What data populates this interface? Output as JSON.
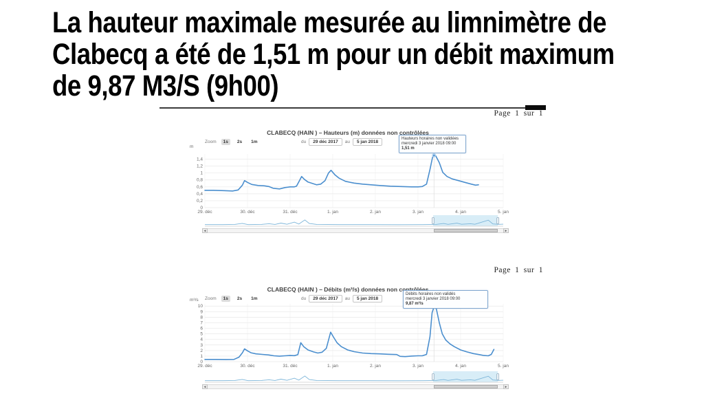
{
  "slide": {
    "title_lines": [
      "La hauteur maximale mesurée au limnimètre de",
      "Clabecq a été de 1,51 m pour un débit maximum",
      "de 9,87 M3/S (9h00)"
    ]
  },
  "icons": {
    "scroll_left": "◄",
    "scroll_right": "►"
  },
  "colors": {
    "line": "#4a8ece",
    "navigator_line": "#7ab4d8",
    "selection_fill": "#d8edf7",
    "marker": "#a8cdec",
    "grid": "#e8e8e8",
    "grid_v": "#f1f1f1",
    "axis_text": "#666666",
    "crosshair": "#dcdcdc",
    "annotation_border": "#7fa6cf"
  },
  "navigator": {
    "selection": [
      0.765,
      0.982
    ],
    "shape": [
      [
        0,
        0.1
      ],
      [
        0.06,
        0.1
      ],
      [
        0.1,
        0.12
      ],
      [
        0.125,
        0.24
      ],
      [
        0.145,
        0.1
      ],
      [
        0.19,
        0.12
      ],
      [
        0.215,
        0.2
      ],
      [
        0.235,
        0.12
      ],
      [
        0.255,
        0.27
      ],
      [
        0.275,
        0.14
      ],
      [
        0.3,
        0.38
      ],
      [
        0.315,
        0.16
      ],
      [
        0.335,
        0.62
      ],
      [
        0.35,
        0.22
      ],
      [
        0.375,
        0.12
      ],
      [
        0.45,
        0.1
      ],
      [
        0.55,
        0.1
      ],
      [
        0.65,
        0.09
      ],
      [
        0.73,
        0.1
      ],
      [
        0.775,
        0.12
      ],
      [
        0.8,
        0.22
      ],
      [
        0.815,
        0.13
      ],
      [
        0.845,
        0.26
      ],
      [
        0.86,
        0.14
      ],
      [
        0.89,
        0.2
      ],
      [
        0.905,
        0.14
      ],
      [
        0.95,
        0.6
      ],
      [
        0.965,
        0.18
      ],
      [
        0.985,
        0.13
      ],
      [
        1,
        0.15
      ]
    ]
  },
  "chart_data": [
    {
      "type": "line",
      "page_label": "Page 1 sur 1",
      "title": "CLABECQ (HAIN ) – Hauteurs (m) données non contrôlées",
      "range_selector": {
        "zoom_label": "Zoom",
        "buttons": [
          "1s",
          "2s",
          "1m"
        ],
        "selected": "1s",
        "from_label": "du",
        "from_value": "29 déc 2017",
        "to_label": "au",
        "to_value": "5 jan 2018"
      },
      "y_unit": "m",
      "ylim": [
        0,
        1.55
      ],
      "y_ticks": [
        1.4,
        1.2,
        1,
        0.8,
        0.6,
        0.4,
        0.2,
        0
      ],
      "y_tick_labels": [
        "1,4",
        "1,2",
        "1",
        "0,8",
        "0,6",
        "0,4",
        "0,2",
        "0"
      ],
      "x_labels": [
        "29. déc",
        "30. déc",
        "31. déc",
        "1. jan",
        "2. jan",
        "3. jan",
        "4. jan",
        "5. jan"
      ],
      "annotation": {
        "lines": [
          "Hauteurs horaires non validées",
          "mercredi 3 janvier 2018 09:00",
          "1,51 m"
        ]
      },
      "max_point": {
        "day": 5.375,
        "value": 1.51,
        "when": "mercredi 3 janvier 2018 09:00"
      },
      "series": [
        {
          "name": "Hauteurs (m)",
          "points": [
            [
              0,
              0.5
            ],
            [
              0.2,
              0.5
            ],
            [
              0.45,
              0.49
            ],
            [
              0.65,
              0.48
            ],
            [
              0.78,
              0.51
            ],
            [
              0.88,
              0.65
            ],
            [
              0.93,
              0.78
            ],
            [
              1.0,
              0.73
            ],
            [
              1.1,
              0.67
            ],
            [
              1.25,
              0.64
            ],
            [
              1.4,
              0.63
            ],
            [
              1.5,
              0.61
            ],
            [
              1.6,
              0.56
            ],
            [
              1.75,
              0.54
            ],
            [
              1.88,
              0.58
            ],
            [
              2.0,
              0.6
            ],
            [
              2.1,
              0.6
            ],
            [
              2.15,
              0.62
            ],
            [
              2.22,
              0.78
            ],
            [
              2.27,
              0.9
            ],
            [
              2.33,
              0.82
            ],
            [
              2.42,
              0.74
            ],
            [
              2.52,
              0.7
            ],
            [
              2.62,
              0.66
            ],
            [
              2.72,
              0.68
            ],
            [
              2.82,
              0.78
            ],
            [
              2.9,
              1.0
            ],
            [
              2.96,
              1.08
            ],
            [
              3.05,
              0.95
            ],
            [
              3.15,
              0.85
            ],
            [
              3.3,
              0.76
            ],
            [
              3.5,
              0.71
            ],
            [
              3.7,
              0.68
            ],
            [
              3.9,
              0.66
            ],
            [
              4.1,
              0.64
            ],
            [
              4.35,
              0.62
            ],
            [
              4.6,
              0.61
            ],
            [
              4.85,
              0.6
            ],
            [
              5.0,
              0.6
            ],
            [
              5.1,
              0.61
            ],
            [
              5.2,
              0.68
            ],
            [
              5.28,
              1.1
            ],
            [
              5.34,
              1.45
            ],
            [
              5.375,
              1.51
            ],
            [
              5.42,
              1.49
            ],
            [
              5.5,
              1.3
            ],
            [
              5.58,
              1.02
            ],
            [
              5.68,
              0.9
            ],
            [
              5.8,
              0.83
            ],
            [
              5.95,
              0.78
            ],
            [
              6.1,
              0.73
            ],
            [
              6.25,
              0.68
            ],
            [
              6.35,
              0.65
            ],
            [
              6.42,
              0.66
            ]
          ]
        }
      ]
    },
    {
      "type": "line",
      "page_label": "Page 1 sur 1",
      "title": "CLABECQ (HAIN ) – Débits (m³/s) données non contrôlées",
      "range_selector": {
        "zoom_label": "Zoom",
        "buttons": [
          "1s",
          "2s",
          "1m"
        ],
        "selected": "1s",
        "from_label": "du",
        "from_value": "29 déc 2017",
        "to_label": "au",
        "to_value": "5 jan 2018"
      },
      "y_unit": "m³/s",
      "ylim": [
        0,
        10.4
      ],
      "y_ticks": [
        10,
        9,
        8,
        7,
        6,
        5,
        4,
        3,
        2,
        1,
        0
      ],
      "y_tick_labels": [
        "10",
        "9",
        "8",
        "7",
        "6",
        "5",
        "4",
        "3",
        "2",
        "1",
        "0"
      ],
      "x_labels": [
        "29. déc",
        "30. déc",
        "31. déc",
        "1. jan",
        "2. jan",
        "3. jan",
        "4. jan",
        "5. jan"
      ],
      "annotation": {
        "lines": [
          "Débits horaires non validés",
          "mercredi 3 janvier 2018 09:00",
          "9,87 m³/s"
        ]
      },
      "max_point": {
        "day": 5.375,
        "value": 9.87,
        "when": "mercredi 3 janvier 2018 09:00"
      },
      "series": [
        {
          "name": "Débits (m³/s)",
          "points": [
            [
              0,
              0.4
            ],
            [
              0.25,
              0.4
            ],
            [
              0.5,
              0.38
            ],
            [
              0.68,
              0.4
            ],
            [
              0.8,
              0.8
            ],
            [
              0.88,
              1.6
            ],
            [
              0.93,
              2.3
            ],
            [
              1.0,
              1.95
            ],
            [
              1.08,
              1.6
            ],
            [
              1.2,
              1.4
            ],
            [
              1.35,
              1.3
            ],
            [
              1.5,
              1.2
            ],
            [
              1.62,
              1.05
            ],
            [
              1.75,
              0.98
            ],
            [
              1.88,
              1.05
            ],
            [
              2.0,
              1.1
            ],
            [
              2.1,
              1.08
            ],
            [
              2.18,
              1.25
            ],
            [
              2.25,
              3.4
            ],
            [
              2.32,
              2.7
            ],
            [
              2.42,
              2.1
            ],
            [
              2.55,
              1.75
            ],
            [
              2.65,
              1.55
            ],
            [
              2.75,
              1.7
            ],
            [
              2.85,
              2.4
            ],
            [
              2.95,
              5.3
            ],
            [
              3.02,
              4.4
            ],
            [
              3.1,
              3.4
            ],
            [
              3.2,
              2.7
            ],
            [
              3.35,
              2.1
            ],
            [
              3.5,
              1.8
            ],
            [
              3.7,
              1.55
            ],
            [
              3.9,
              1.45
            ],
            [
              4.1,
              1.4
            ],
            [
              4.3,
              1.32
            ],
            [
              4.5,
              1.28
            ],
            [
              4.58,
              0.95
            ],
            [
              4.7,
              0.9
            ],
            [
              4.85,
              1.0
            ],
            [
              5.0,
              1.05
            ],
            [
              5.1,
              1.05
            ],
            [
              5.2,
              1.3
            ],
            [
              5.28,
              4.5
            ],
            [
              5.33,
              8.8
            ],
            [
              5.375,
              9.87
            ],
            [
              5.43,
              9.5
            ],
            [
              5.5,
              7.0
            ],
            [
              5.57,
              5.0
            ],
            [
              5.65,
              3.9
            ],
            [
              5.75,
              3.2
            ],
            [
              5.85,
              2.7
            ],
            [
              6.0,
              2.1
            ],
            [
              6.15,
              1.75
            ],
            [
              6.3,
              1.45
            ],
            [
              6.45,
              1.25
            ],
            [
              6.55,
              1.1
            ],
            [
              6.65,
              1.05
            ],
            [
              6.72,
              1.3
            ],
            [
              6.78,
              2.2
            ]
          ]
        }
      ]
    }
  ]
}
